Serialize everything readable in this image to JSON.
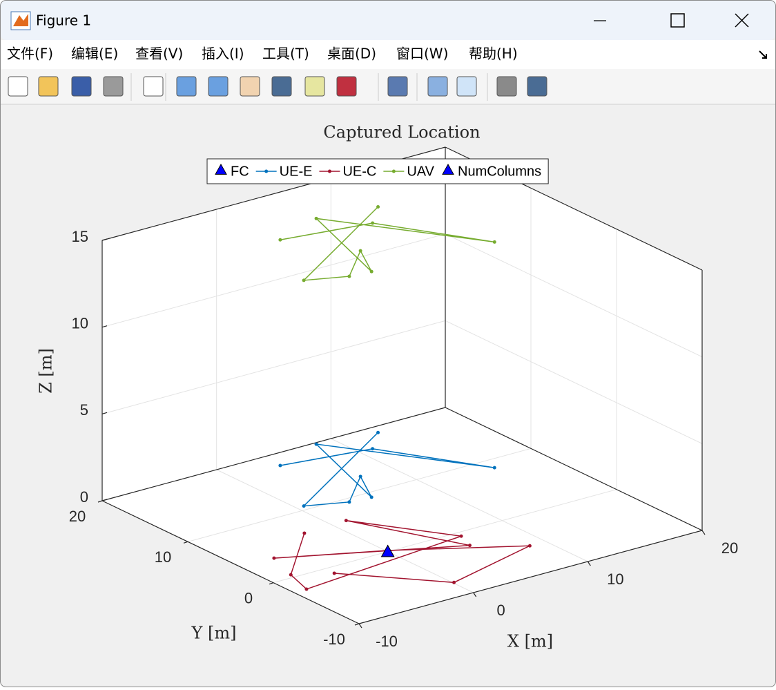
{
  "window": {
    "title": "Figure 1",
    "menu": [
      "文件(F)",
      "编辑(E)",
      "查看(V)",
      "插入(I)",
      "工具(T)",
      "桌面(D)",
      "窗口(W)",
      "帮助(H)"
    ]
  },
  "chart_data": {
    "type": "line3d",
    "title": "Captured Location",
    "xlabel": "X [m]",
    "ylabel": "Y [m]",
    "zlabel": "Z [m]",
    "xlim": [
      -10,
      20
    ],
    "ylim": [
      -10,
      20
    ],
    "zlim": [
      0,
      15
    ],
    "xticks": [
      -10,
      0,
      10,
      20
    ],
    "yticks": [
      -10,
      0,
      10,
      20
    ],
    "zticks": [
      0,
      5,
      10,
      15
    ],
    "grid": true,
    "series": [
      {
        "name": "FC",
        "color": "#0000ff",
        "marker": "triangle",
        "x": [
          0
        ],
        "y": [
          0
        ],
        "z": [
          0
        ]
      },
      {
        "name": "UE-E",
        "color": "#0072bd",
        "marker": "dot",
        "x": [
          10.3,
          -2.4,
          0.6,
          4.2,
          2.4,
          5.5,
          12.7,
          8.1,
          1.0
        ],
        "y": [
          14.9,
          6.6,
          5.3,
          8.8,
          5.1,
          15.7,
          4.5,
          12.6,
          13.9
        ],
        "z": [
          1.5,
          1.5,
          1.5,
          1.5,
          1.5,
          1.5,
          1.5,
          1.5,
          1.5
        ]
      },
      {
        "name": "UE-C",
        "color": "#a2142f",
        "marker": "dot",
        "x": [
          -2.5,
          -8.1,
          -8.9,
          5.9,
          1.3,
          5.3,
          -7.1,
          0.1,
          8.6,
          0.1,
          -5.5
        ],
        "y": [
          6.4,
          0.5,
          -2.4,
          -0.7,
          6.6,
          -2.5,
          3.8,
          0.2,
          -5.1,
          -7.6,
          -1.1
        ],
        "z": [
          0,
          0,
          0,
          0,
          0,
          0,
          0,
          0,
          0,
          0,
          0
        ]
      },
      {
        "name": "UAV",
        "color": "#77ac30",
        "marker": "dot",
        "x": [
          10.3,
          -2.4,
          0.6,
          4.2,
          2.4,
          5.5,
          12.7,
          8.1,
          1.0
        ],
        "y": [
          14.9,
          6.6,
          5.3,
          8.8,
          5.1,
          15.7,
          4.5,
          12.6,
          13.9
        ],
        "z": [
          14.5,
          14.5,
          14.5,
          14.5,
          14.5,
          14.5,
          14.5,
          14.5,
          14.5
        ]
      },
      {
        "name": "NumColumns",
        "color": "#0000ff",
        "marker": "triangle",
        "x": [
          0
        ],
        "y": [
          0
        ],
        "z": [
          0
        ]
      }
    ]
  }
}
